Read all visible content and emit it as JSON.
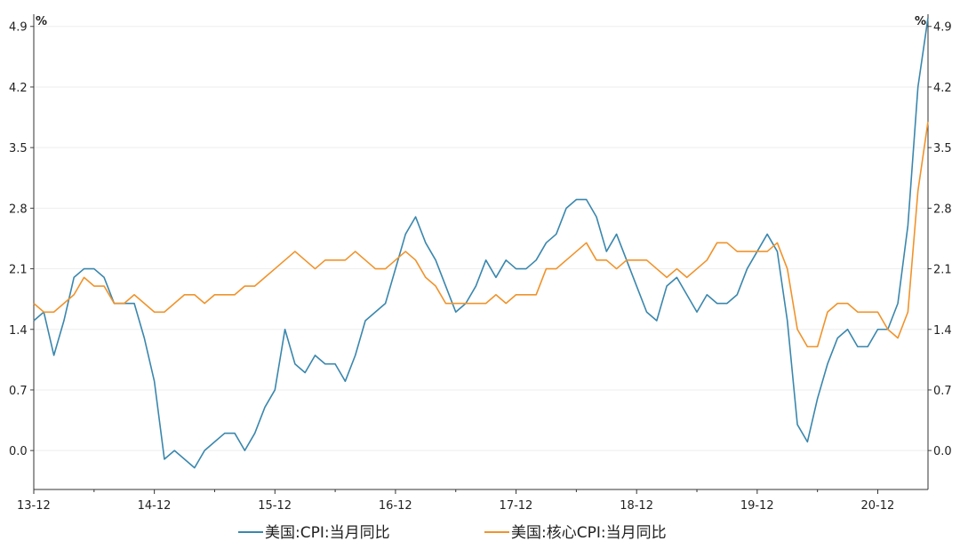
{
  "chart_data": {
    "type": "line",
    "title": "",
    "xlabel": "",
    "ylabel": "",
    "y_unit_left": "%",
    "y_unit_right": "%",
    "ylim": [
      -0.45,
      5.0
    ],
    "y_ticks": [
      "0.0",
      "0.7",
      "1.4",
      "2.1",
      "2.8",
      "3.5",
      "4.2",
      "4.9"
    ],
    "x_ticks": [
      "13-12",
      "14-12",
      "15-12",
      "16-12",
      "17-12",
      "18-12",
      "19-12",
      "20-12"
    ],
    "x_start": "2013-12",
    "x_end": "2021-05",
    "grid": true,
    "legend_position": "bottom",
    "series": [
      {
        "name": "美国:CPI:当月同比",
        "color": "#3a87ad",
        "values": [
          1.5,
          1.6,
          1.1,
          1.5,
          2.0,
          2.1,
          2.1,
          2.0,
          1.7,
          1.7,
          1.7,
          1.3,
          0.8,
          -0.1,
          0.0,
          -0.1,
          -0.2,
          0.0,
          0.1,
          0.2,
          0.2,
          0.0,
          0.2,
          0.5,
          0.7,
          1.4,
          1.0,
          0.9,
          1.1,
          1.0,
          1.0,
          0.8,
          1.1,
          1.5,
          1.6,
          1.7,
          2.1,
          2.5,
          2.7,
          2.4,
          2.2,
          1.9,
          1.6,
          1.7,
          1.9,
          2.2,
          2.0,
          2.2,
          2.1,
          2.1,
          2.2,
          2.4,
          2.5,
          2.8,
          2.9,
          2.9,
          2.7,
          2.3,
          2.5,
          2.2,
          1.9,
          1.6,
          1.5,
          1.9,
          2.0,
          1.8,
          1.6,
          1.8,
          1.7,
          1.7,
          1.8,
          2.1,
          2.3,
          2.5,
          2.3,
          1.5,
          0.3,
          0.1,
          0.6,
          1.0,
          1.3,
          1.4,
          1.2,
          1.2,
          1.4,
          1.4,
          1.7,
          2.6,
          4.2,
          5.0
        ]
      },
      {
        "name": "美国:核心CPI:当月同比",
        "color": "#f0932b",
        "values": [
          1.7,
          1.6,
          1.6,
          1.7,
          1.8,
          2.0,
          1.9,
          1.9,
          1.7,
          1.7,
          1.8,
          1.7,
          1.6,
          1.6,
          1.7,
          1.8,
          1.8,
          1.7,
          1.8,
          1.8,
          1.8,
          1.9,
          1.9,
          2.0,
          2.1,
          2.2,
          2.3,
          2.2,
          2.1,
          2.2,
          2.2,
          2.2,
          2.3,
          2.2,
          2.1,
          2.1,
          2.2,
          2.3,
          2.2,
          2.0,
          1.9,
          1.7,
          1.7,
          1.7,
          1.7,
          1.7,
          1.8,
          1.7,
          1.8,
          1.8,
          1.8,
          2.1,
          2.1,
          2.2,
          2.3,
          2.4,
          2.2,
          2.2,
          2.1,
          2.2,
          2.2,
          2.2,
          2.1,
          2.0,
          2.1,
          2.0,
          2.1,
          2.2,
          2.4,
          2.4,
          2.3,
          2.3,
          2.3,
          2.3,
          2.4,
          2.1,
          1.4,
          1.2,
          1.2,
          1.6,
          1.7,
          1.7,
          1.6,
          1.6,
          1.6,
          1.4,
          1.3,
          1.6,
          3.0,
          3.8
        ]
      }
    ]
  }
}
